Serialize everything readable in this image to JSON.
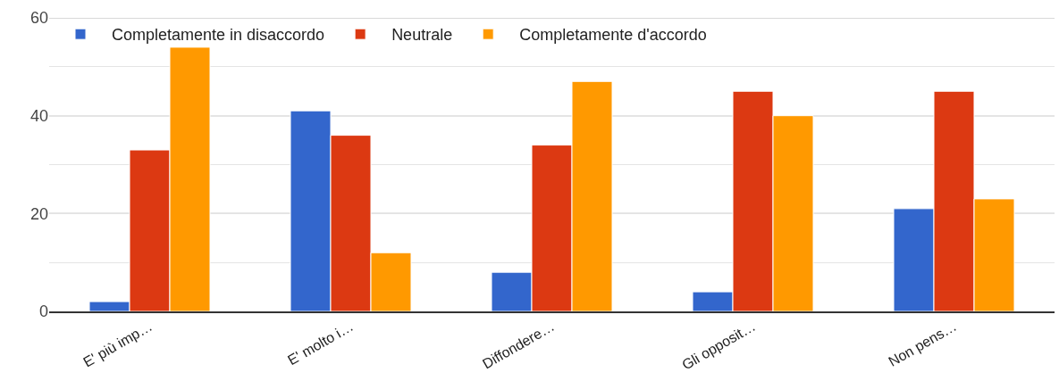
{
  "chart_data": {
    "type": "bar",
    "categories": [
      "E' più imp…",
      "E' molto i…",
      "Diffondere…",
      "Gli opposit…",
      "Non pens…"
    ],
    "series": [
      {
        "name": "Completamente in disaccordo",
        "color": "#3366cc",
        "values": [
          2,
          41,
          8,
          4,
          21
        ]
      },
      {
        "name": "Neutrale",
        "color": "#dc3912",
        "values": [
          33,
          36,
          34,
          45,
          45
        ]
      },
      {
        "name": "Completamente d'accordo",
        "color": "#ff9900",
        "values": [
          54,
          12,
          47,
          40,
          23
        ]
      }
    ],
    "ylim": [
      0,
      60
    ],
    "yticks": [
      0,
      {
        "value": 10,
        "label": null
      },
      20,
      {
        "value": 30,
        "label": null
      },
      40,
      {
        "value": 50,
        "label": null
      },
      60
    ],
    "grid": true,
    "legend": "top left"
  }
}
